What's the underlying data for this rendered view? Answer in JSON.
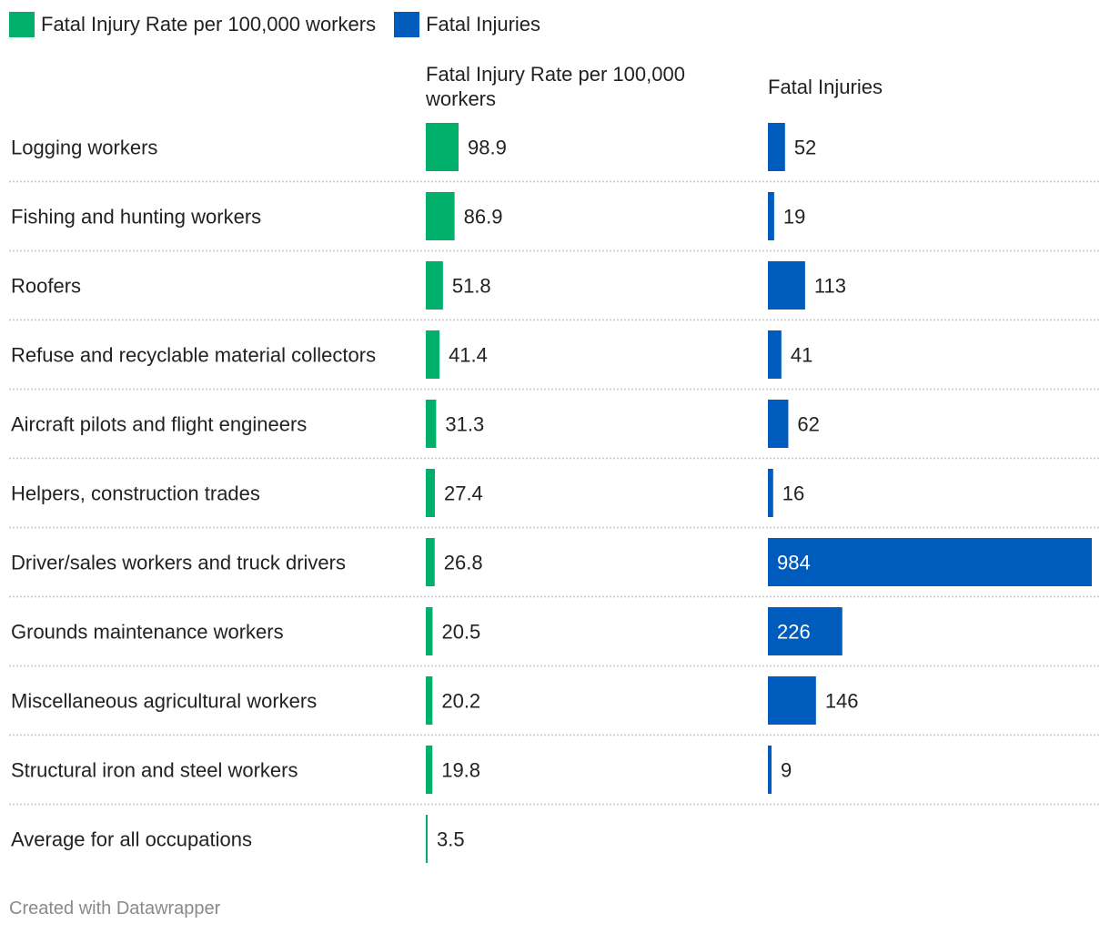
{
  "legend": {
    "items": [
      {
        "label": "Fatal Injury Rate per 100,000 workers",
        "color": "#00b06b"
      },
      {
        "label": "Fatal Injuries",
        "color": "#005cbc"
      }
    ]
  },
  "columns": {
    "rate_header": "Fatal Injury Rate per 100,000 workers",
    "injuries_header": "Fatal Injuries"
  },
  "credit": "Created with Datawrapper",
  "chart_data": {
    "type": "bar",
    "orientation": "horizontal",
    "categories": [
      "Logging workers",
      "Fishing and hunting workers",
      "Roofers",
      "Refuse and recyclable material collectors",
      "Aircraft pilots and flight engineers",
      "Helpers, construction trades",
      "Driver/sales workers and truck drivers",
      "Grounds maintenance workers",
      "Miscellaneous agricultural workers",
      "Structural iron and steel workers",
      "Average for all occupations"
    ],
    "series": [
      {
        "name": "Fatal Injury Rate per 100,000 workers",
        "color": "#00b06b",
        "values": [
          98.9,
          86.9,
          51.8,
          41.4,
          31.3,
          27.4,
          26.8,
          20.5,
          20.2,
          19.8,
          3.5
        ],
        "labels": [
          "98.9",
          "86.9",
          "51.8",
          "41.4",
          "31.3",
          "27.4",
          "26.8",
          "20.5",
          "20.2",
          "19.8",
          "3.5"
        ]
      },
      {
        "name": "Fatal Injuries",
        "color": "#005cbc",
        "values": [
          52,
          19,
          113,
          41,
          62,
          16,
          984,
          226,
          146,
          9,
          null
        ],
        "labels": [
          "52",
          "19",
          "113",
          "41",
          "62",
          "16",
          "984",
          "226",
          "146",
          "9",
          ""
        ]
      }
    ],
    "title": "",
    "xlabel": "",
    "ylabel": ""
  }
}
